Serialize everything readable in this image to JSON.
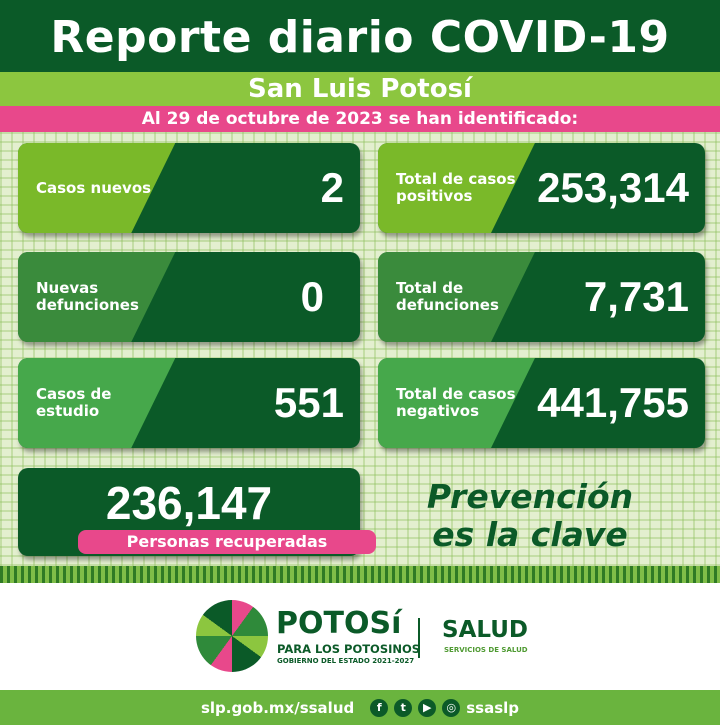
{
  "header": {
    "title": "Reporte diario COVID-19",
    "subtitle": "San Luis Potosí",
    "date_line": "Al 29 de octubre de 2023 se han identificado:"
  },
  "cards": [
    {
      "label": "Casos nuevos",
      "value": "2"
    },
    {
      "label": "Total de casos positivos",
      "value": "253,314"
    },
    {
      "label": "Nuevas defunciones",
      "value": "0"
    },
    {
      "label": "Total de defunciones",
      "value": "7,731"
    },
    {
      "label": "Casos de estudio",
      "value": "551"
    },
    {
      "label": "Total de casos negativos",
      "value": "441,755"
    }
  ],
  "recovered": {
    "value": "236,147",
    "label": "Personas recuperadas"
  },
  "slogan": {
    "line1": "Prevención",
    "line2": "es la clave"
  },
  "logos": {
    "potosi": "POTOSí",
    "para": "PARA LOS POTOSINOS",
    "gobierno": "GOBIERNO DEL ESTADO 2021-2027",
    "salud": "SALUD",
    "servicios": "SERVICIOS DE SALUD"
  },
  "footer": {
    "url": "slp.gob.mx/ssalud",
    "handle": "ssaslp",
    "icons": [
      "facebook-icon",
      "twitter-icon",
      "youtube-icon",
      "instagram-icon"
    ]
  },
  "colors": {
    "dark_green": "#0b5a28",
    "light_green": "#8cc63f",
    "pink": "#e8488b"
  }
}
